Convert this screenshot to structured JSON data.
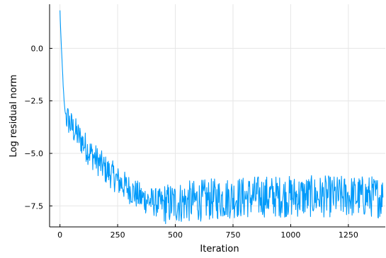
{
  "chart_data": {
    "type": "line",
    "title": "",
    "xlabel": "Iteration",
    "ylabel": "Log residual norm",
    "xlim": [
      -45,
      1410
    ],
    "ylim": [
      -8.5,
      2.1
    ],
    "x_ticks": [
      0,
      250,
      500,
      750,
      1000,
      1250
    ],
    "x_tick_labels": [
      "0",
      "250",
      "500",
      "750",
      "1000",
      "1250"
    ],
    "y_ticks": [
      0.0,
      -2.5,
      -5.0,
      -7.5
    ],
    "y_tick_labels": [
      "0.0",
      "−2.5",
      "−5.0",
      "−7.5"
    ],
    "grid": true,
    "legend": "none",
    "series": [
      {
        "color": "#009AFA",
        "points": [
          [
            0,
            1.8
          ],
          [
            3,
            0.9
          ],
          [
            6,
            0.1
          ],
          [
            10,
            -0.8
          ],
          [
            14,
            -1.8
          ],
          [
            18,
            -2.5
          ],
          [
            22,
            -3.0
          ],
          [
            26,
            -3.2
          ],
          [
            30,
            -3.3
          ],
          [
            40,
            -3.5
          ],
          [
            55,
            -3.8
          ],
          [
            75,
            -4.1
          ],
          [
            100,
            -4.5
          ],
          [
            125,
            -4.9
          ],
          [
            150,
            -5.2
          ],
          [
            175,
            -5.5
          ],
          [
            200,
            -5.8
          ],
          [
            225,
            -6.0
          ],
          [
            250,
            -6.3
          ],
          [
            275,
            -6.5
          ],
          [
            300,
            -6.7
          ],
          [
            325,
            -6.9
          ],
          [
            350,
            -7.1
          ],
          [
            375,
            -7.2
          ],
          [
            400,
            -7.3
          ],
          [
            425,
            -7.35
          ],
          [
            450,
            -7.4
          ],
          [
            475,
            -7.4
          ],
          [
            500,
            -7.35
          ],
          [
            550,
            -7.3
          ],
          [
            600,
            -7.25
          ],
          [
            650,
            -7.2
          ],
          [
            700,
            -7.15
          ],
          [
            750,
            -7.1
          ],
          [
            800,
            -7.1
          ],
          [
            850,
            -7.05
          ],
          [
            900,
            -7.05
          ],
          [
            950,
            -7.05
          ],
          [
            1000,
            -7.05
          ],
          [
            1050,
            -7.05
          ],
          [
            1100,
            -7.05
          ],
          [
            1150,
            -7.05
          ],
          [
            1200,
            -7.05
          ],
          [
            1250,
            -7.05
          ],
          [
            1300,
            -7.05
          ],
          [
            1350,
            -7.05
          ],
          [
            1400,
            -7.1
          ]
        ]
      }
    ]
  }
}
